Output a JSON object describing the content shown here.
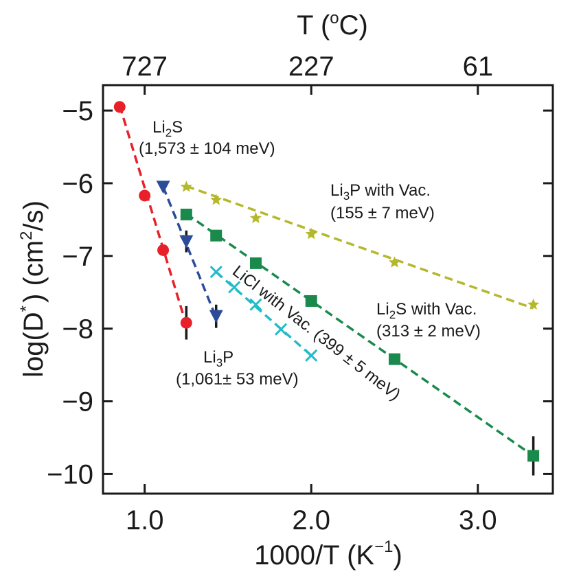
{
  "chart_data": {
    "type": "scatter",
    "x_axis": {
      "label_main": "1000/T (K",
      "label_exp": "−1",
      "label_close": ")",
      "range": [
        0.75,
        3.45
      ],
      "ticks": [
        {
          "value": 1.0,
          "label": "1.0"
        },
        {
          "value": 2.0,
          "label": "2.0"
        },
        {
          "value": 3.0,
          "label": "3.0"
        }
      ]
    },
    "top_axis": {
      "label_main": "T (",
      "label_deg": "o",
      "label_close": "C)",
      "ticks": [
        {
          "value": 1.0,
          "label": "727"
        },
        {
          "value": 2.0,
          "label": "227"
        },
        {
          "value": 3.0,
          "label": "61"
        }
      ]
    },
    "y_axis": {
      "label_main": "log(D",
      "label_star": "*",
      "label_mid": ") (cm",
      "label_exp": "2",
      "label_close": "/s)",
      "range": [
        -10.27,
        -4.65
      ],
      "ticks": [
        {
          "value": -5,
          "label": "−5"
        },
        {
          "value": -6,
          "label": "−6"
        },
        {
          "value": -7,
          "label": "−7"
        },
        {
          "value": -8,
          "label": "−8"
        },
        {
          "value": -9,
          "label": "−9"
        },
        {
          "value": -10,
          "label": "−10"
        }
      ]
    },
    "series": [
      {
        "id": "li2s",
        "name": "Li2S",
        "color": "#e8202a",
        "marker": "circle",
        "line_points": [
          [
            0.85,
            -4.93
          ],
          [
            1.25,
            -7.95
          ]
        ],
        "points": [
          {
            "x": 0.85,
            "y": -4.95
          },
          {
            "x": 1.0,
            "y": -6.17
          },
          {
            "x": 1.111,
            "y": -6.92
          },
          {
            "x": 1.25,
            "y": -7.92,
            "err": 0.23
          }
        ],
        "annotation": {
          "name_main": "Li",
          "name_sub": "2",
          "name_after": "S",
          "value": "(1,573 ± 104 meV)"
        }
      },
      {
        "id": "li3p",
        "name": "Li3P",
        "color": "#2c4c9a",
        "marker": "triangle-down",
        "line_points": [
          [
            1.111,
            -6.05
          ],
          [
            1.429,
            -7.85
          ]
        ],
        "points": [
          {
            "x": 1.111,
            "y": -6.05
          },
          {
            "x": 1.25,
            "y": -6.8,
            "err": 0.15
          },
          {
            "x": 1.429,
            "y": -7.83,
            "err": 0.16
          }
        ],
        "annotation": {
          "name_main": "Li",
          "name_sub": "3",
          "name_after": "P",
          "value": "(1,061± 53 meV)"
        }
      },
      {
        "id": "licl_vac",
        "name": "LiCl with Vac.",
        "color": "#22bcc8",
        "marker": "x",
        "line_points": [
          [
            1.429,
            -7.22
          ],
          [
            2.0,
            -8.37
          ]
        ],
        "points": [
          {
            "x": 1.429,
            "y": -7.22
          },
          {
            "x": 1.538,
            "y": -7.43
          },
          {
            "x": 1.667,
            "y": -7.67
          },
          {
            "x": 1.818,
            "y": -8.01
          },
          {
            "x": 2.0,
            "y": -8.37
          }
        ],
        "annotation": {
          "label": "LiCl with Vac. (399 ± 5 meV)"
        }
      },
      {
        "id": "li2s_vac",
        "name": "Li2S with Vac.",
        "color": "#1a8a4c",
        "marker": "square",
        "line_points": [
          [
            1.25,
            -6.42
          ],
          [
            3.333,
            -9.75
          ]
        ],
        "points": [
          {
            "x": 1.25,
            "y": -6.43
          },
          {
            "x": 1.429,
            "y": -6.72
          },
          {
            "x": 1.667,
            "y": -7.1
          },
          {
            "x": 2.0,
            "y": -7.62
          },
          {
            "x": 2.5,
            "y": -8.42
          },
          {
            "x": 3.333,
            "y": -9.75,
            "err": 0.27
          }
        ],
        "annotation": {
          "name_main": "Li",
          "name_sub": "2",
          "name_after": "S with Vac.",
          "value": "(313 ± 2 meV)"
        }
      },
      {
        "id": "li3p_vac",
        "name": "Li3P with Vac.",
        "color": "#b5b82a",
        "marker": "star",
        "line_points": [
          [
            1.25,
            -6.04
          ],
          [
            3.333,
            -7.72
          ]
        ],
        "points": [
          {
            "x": 1.25,
            "y": -6.05
          },
          {
            "x": 1.429,
            "y": -6.23
          },
          {
            "x": 1.667,
            "y": -6.48
          },
          {
            "x": 2.0,
            "y": -6.7
          },
          {
            "x": 2.5,
            "y": -7.09
          },
          {
            "x": 3.333,
            "y": -7.67
          }
        ],
        "annotation": {
          "name_main": "Li",
          "name_sub": "3",
          "name_after": "P with Vac.",
          "value": "(155 ± 7 meV)"
        }
      }
    ]
  }
}
